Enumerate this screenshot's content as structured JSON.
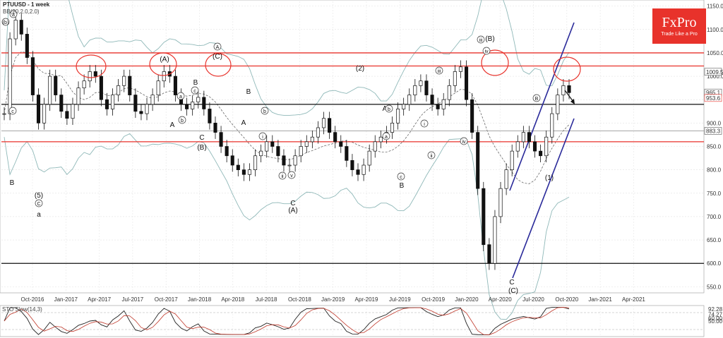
{
  "header": {
    "symbol_title": "PTUUSD - 1 week",
    "indicator_bb": "BB(20,2.0,2.0)",
    "indicator_stoch": "STO Slow(14,3)"
  },
  "brand": {
    "name": "FxPro",
    "tagline": "Trade Like a Pro",
    "color": "#e8322b"
  },
  "chart_data": [
    {
      "type": "candlestick",
      "title": "PTUUSD - 1 week",
      "x_ticks": [
        "Oct-2016",
        "Jan-2017",
        "Apr-2017",
        "Jul-2017",
        "Oct-2017",
        "Jan-2018",
        "Apr-2018",
        "Jul-2018",
        "Oct-2018",
        "Jan-2019",
        "Apr-2019",
        "Jul-2019",
        "Oct-2019",
        "Jan-2020",
        "Apr-2020",
        "Jul-2020",
        "Oct-2020",
        "Jan-2021",
        "Apr-2021"
      ],
      "y_ticks": [
        550,
        600,
        650,
        700,
        750,
        800,
        850,
        900,
        950,
        1000,
        1050,
        1100,
        1150
      ],
      "ylim": [
        540,
        1160
      ],
      "price_tags": [
        {
          "value": 1009.5,
          "label": "1009.5",
          "color": "#555555"
        },
        {
          "value": 965.1,
          "label": "965.1",
          "color": "#555555"
        },
        {
          "value": 953.6,
          "label": "953.6",
          "color": "#e8322b"
        },
        {
          "value": 883.3,
          "label": "883.3",
          "color": "#555555"
        }
      ],
      "close_approx": [
        920,
        1080,
        1120,
        1090,
        1040,
        960,
        900,
        940,
        1000,
        960,
        925,
        910,
        940,
        975,
        990,
        1010,
        1000,
        950,
        930,
        960,
        980,
        1000,
        960,
        925,
        920,
        940,
        960,
        990,
        1010,
        1000,
        960,
        940,
        930,
        945,
        955,
        930,
        900,
        880,
        850,
        830,
        810,
        800,
        790,
        800,
        830,
        840,
        860,
        850,
        830,
        810,
        810,
        830,
        850,
        860,
        870,
        890,
        910,
        880,
        860,
        850,
        820,
        800,
        790,
        810,
        840,
        860,
        870,
        880,
        900,
        930,
        940,
        960,
        980,
        990,
        960,
        940,
        930,
        950,
        980,
        1010,
        1020,
        950,
        880,
        760,
        640,
        600,
        700,
        760,
        800,
        840,
        860,
        880,
        860,
        840,
        830,
        870,
        920,
        960,
        980,
        965
      ],
      "horizontal_levels": [
        {
          "value": 1050,
          "color": "#e8322b"
        },
        {
          "value": 1022,
          "color": "#e8322b"
        },
        {
          "value": 860,
          "color": "#e8322b"
        },
        {
          "value": 940,
          "color": "#111111"
        },
        {
          "value": 600,
          "color": "#111111"
        },
        {
          "value": 883.3,
          "color": "#999999"
        }
      ],
      "wave_labels": [
        {
          "text": "(b)",
          "circled": true
        },
        {
          "text": "a",
          "circled": true
        },
        {
          "text": "c",
          "circled": true
        },
        {
          "text": "B",
          "circled": false
        },
        {
          "text": "(5)",
          "circled": false
        },
        {
          "text": "C",
          "circled": true
        },
        {
          "text": "a",
          "circled": false
        },
        {
          "text": "(A)",
          "circled": false
        },
        {
          "text": "A",
          "circled": true
        },
        {
          "text": "(C)",
          "circled": false
        },
        {
          "text": "B",
          "circled": false
        },
        {
          "text": "C",
          "circled": false
        },
        {
          "text": "(B)",
          "circled": false
        },
        {
          "text": "A",
          "circled": false
        },
        {
          "text": "b",
          "circled": true
        },
        {
          "text": "a",
          "circled": true
        },
        {
          "text": "c",
          "circled": true
        },
        {
          "text": "B",
          "circled": false
        },
        {
          "text": "A",
          "circled": false
        },
        {
          "text": "b",
          "circled": true
        },
        {
          "text": "i",
          "circled": true
        },
        {
          "text": "ii",
          "circled": true
        },
        {
          "text": "iii",
          "circled": true
        },
        {
          "text": "iv",
          "circled": true
        },
        {
          "text": "v",
          "circled": true
        },
        {
          "text": "C",
          "circled": false
        },
        {
          "text": "(A)",
          "circled": false
        },
        {
          "text": "A",
          "circled": false
        },
        {
          "text": "b",
          "circled": true
        },
        {
          "text": "a",
          "circled": true
        },
        {
          "text": "c",
          "circled": true
        },
        {
          "text": "B",
          "circled": false
        },
        {
          "text": "i",
          "circled": true
        },
        {
          "text": "ii",
          "circled": true
        },
        {
          "text": "iii",
          "circled": true
        },
        {
          "text": "iv",
          "circled": true
        },
        {
          "text": "(B)",
          "circled": false
        },
        {
          "text": "C",
          "circled": false
        },
        {
          "text": "(C)",
          "circled": false
        },
        {
          "text": "B",
          "circled": true
        },
        {
          "text": "(1)",
          "circled": false
        },
        {
          "text": "(2)",
          "circled": false
        }
      ]
    },
    {
      "type": "line",
      "title": "STO Slow(14,3)",
      "ylim": [
        0,
        100
      ],
      "y_ticks": [
        50,
        60
      ],
      "levels": [
        {
          "value": 92.28,
          "label": "92.28"
        },
        {
          "value": 74.27,
          "label": "74.27"
        }
      ]
    }
  ]
}
